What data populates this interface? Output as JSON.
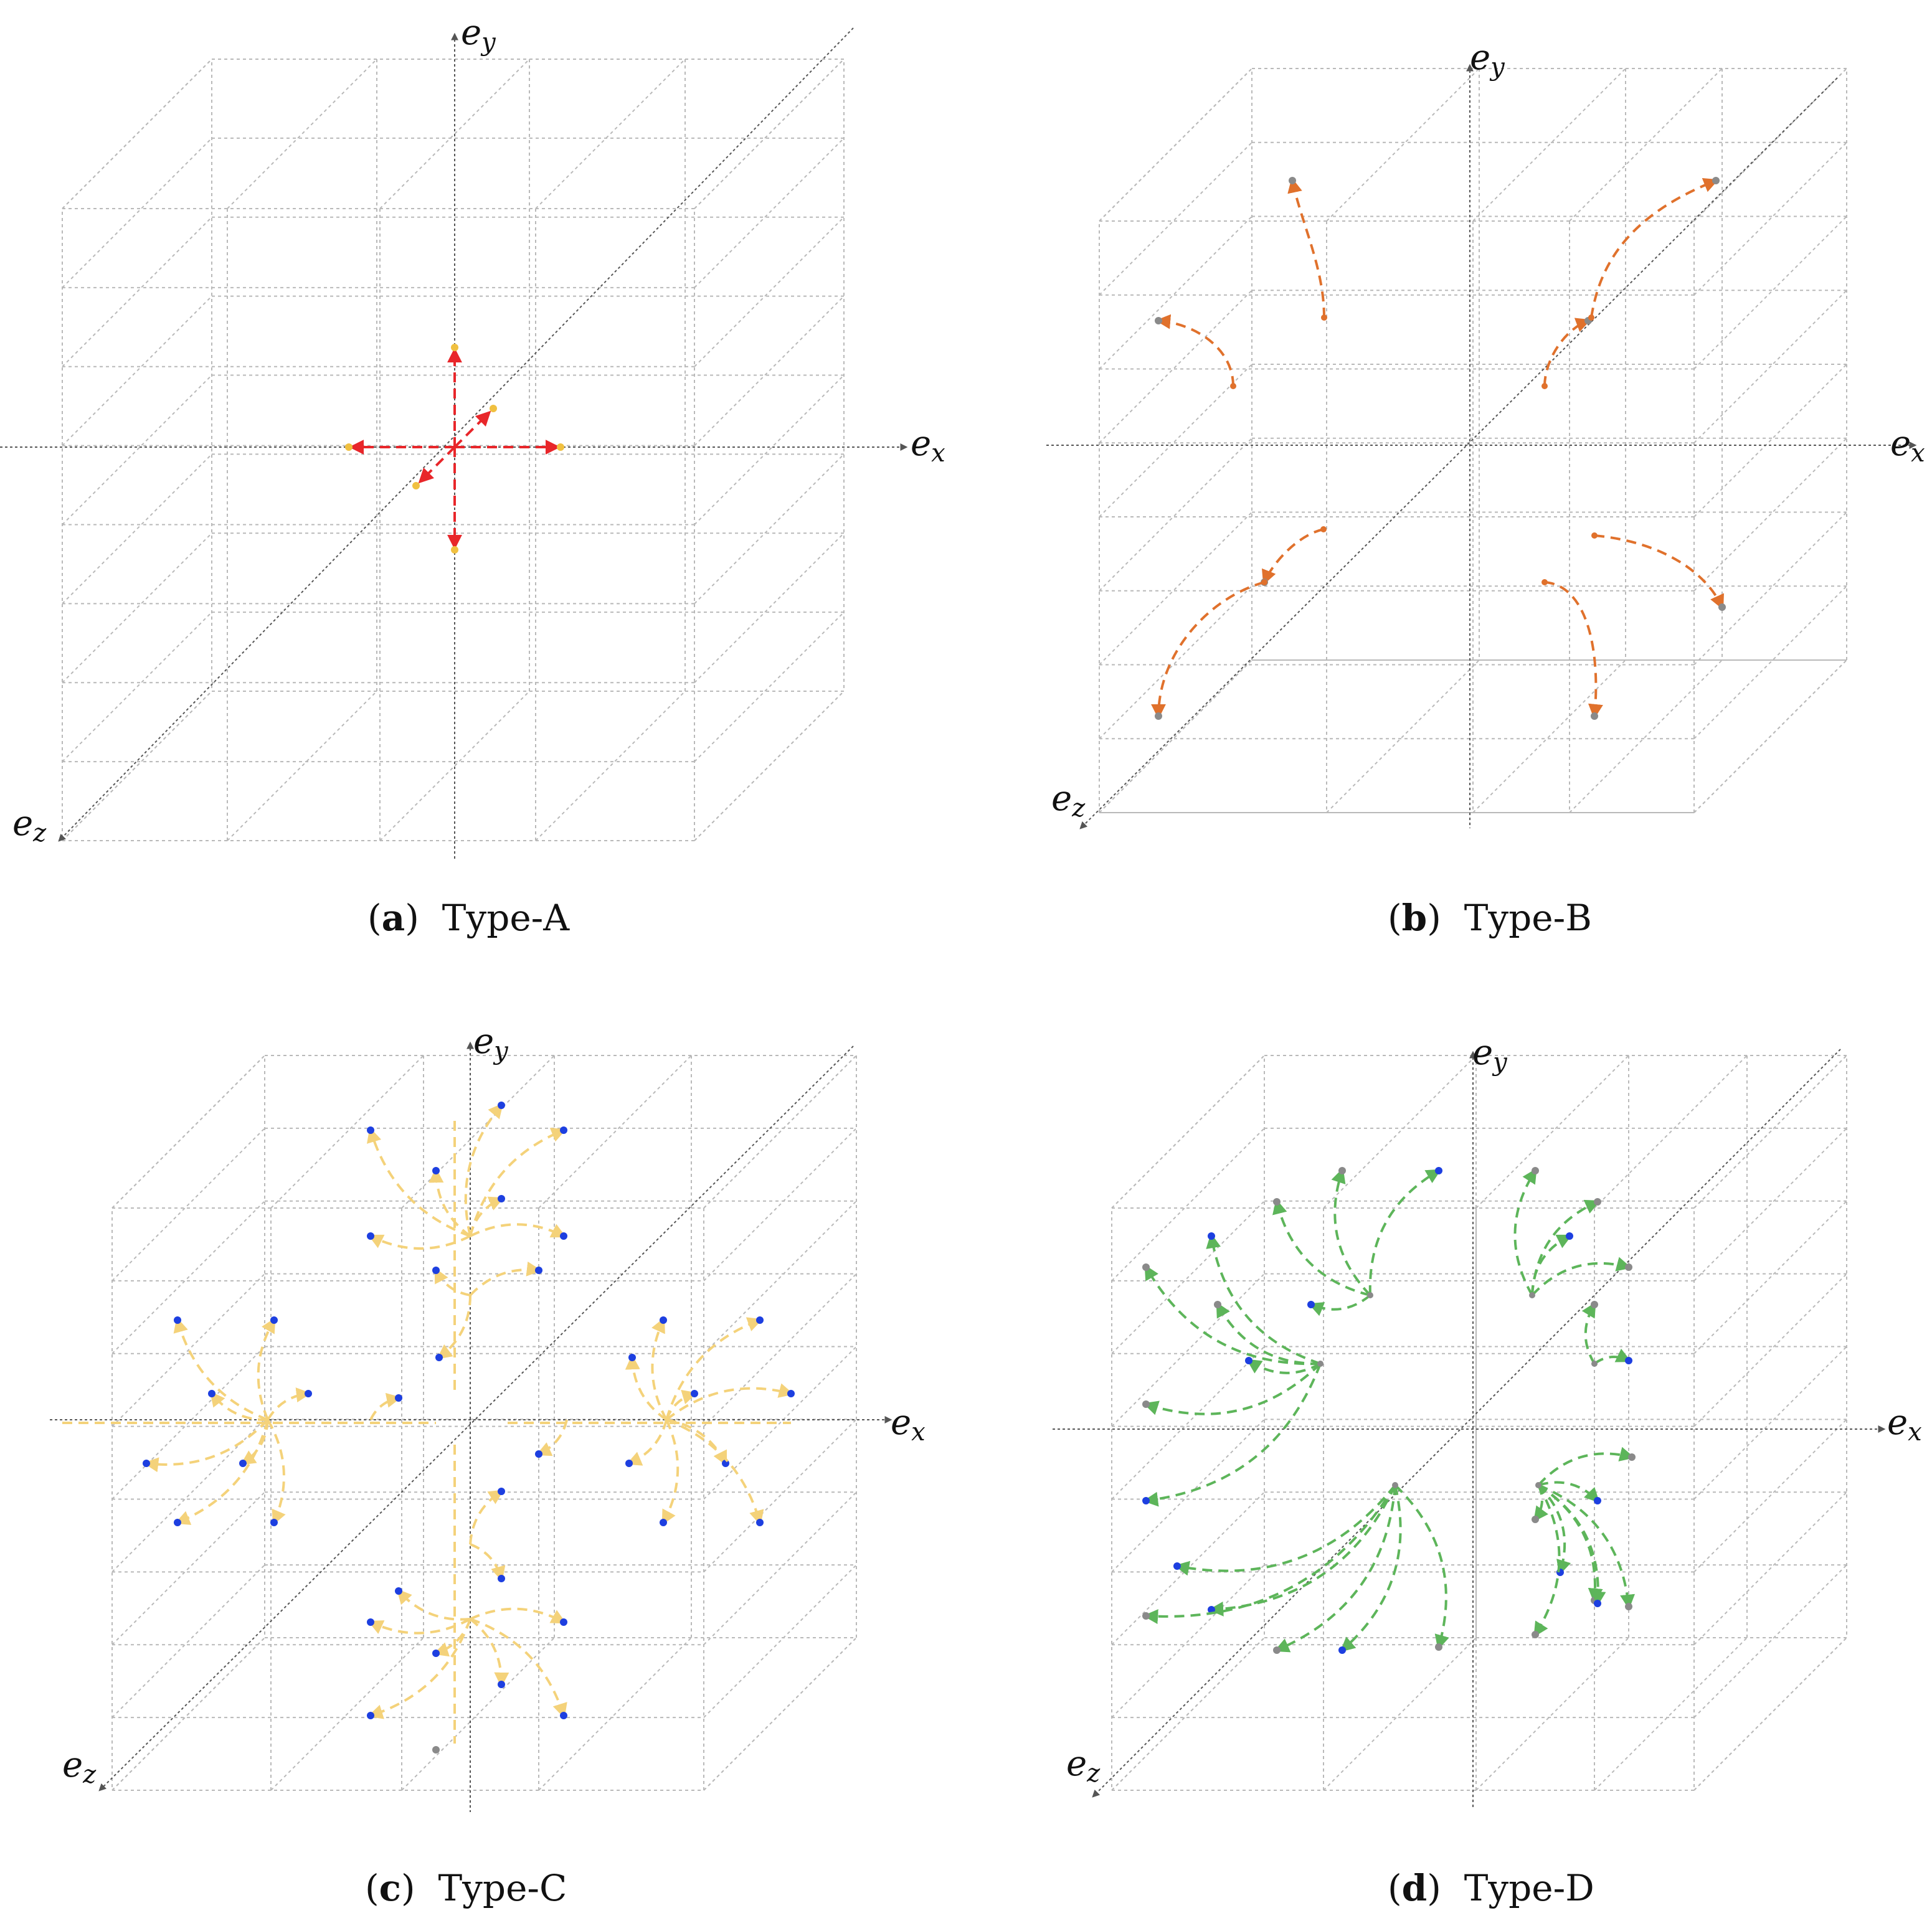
{
  "panels": [
    {
      "id": "a",
      "label": "a",
      "title": "Type-A",
      "color": "#e8262a",
      "axis_x": "e",
      "axis_x_sub": "x",
      "axis_y": "e",
      "axis_y_sub": "y",
      "axis_z": "e",
      "axis_z_sub": "z"
    },
    {
      "id": "b",
      "label": "b",
      "title": "Type-B",
      "color": "#e0712c",
      "axis_x": "e",
      "axis_x_sub": "x",
      "axis_y": "e",
      "axis_y_sub": "y",
      "axis_z": "e",
      "axis_z_sub": "z"
    },
    {
      "id": "c",
      "label": "c",
      "title": "Type-C",
      "color": "#f4d27a",
      "axis_x": "e",
      "axis_x_sub": "x",
      "axis_y": "e",
      "axis_y_sub": "y",
      "axis_z": "e",
      "axis_z_sub": "z"
    },
    {
      "id": "d",
      "label": "d",
      "title": "Type-D",
      "color": "#5db55a",
      "axis_x": "e",
      "axis_x_sub": "x",
      "axis_y": "e",
      "axis_y_sub": "y",
      "axis_z": "e",
      "axis_z_sub": "z"
    }
  ],
  "colors": {
    "grid": "#b9b9b9",
    "axis": "#555555",
    "endpoint_gray": "#8a8a8a",
    "endpoint_blue": "#1d3fe0",
    "endpoint_yellow": "#f0c040"
  }
}
